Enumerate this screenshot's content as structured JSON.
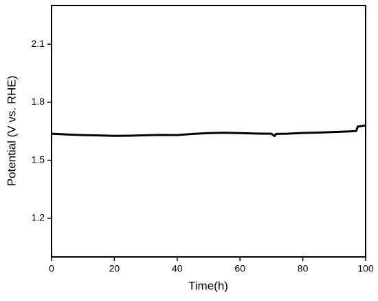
{
  "chart_data": {
    "type": "line",
    "x_label": "Time(h)",
    "y_label": "Potential (V vs. RHE)",
    "x": [
      0,
      5,
      10,
      15,
      20,
      25,
      30,
      35,
      40,
      45,
      50,
      55,
      60,
      65,
      70,
      71,
      71.5,
      75,
      80,
      85,
      90,
      95,
      97,
      97.5,
      100
    ],
    "series": [
      {
        "name": "Potential",
        "color": "#000000",
        "values": [
          1.637,
          1.633,
          1.63,
          1.628,
          1.626,
          1.627,
          1.629,
          1.631,
          1.63,
          1.636,
          1.64,
          1.642,
          1.64,
          1.638,
          1.637,
          1.625,
          1.636,
          1.637,
          1.641,
          1.643,
          1.646,
          1.649,
          1.651,
          1.674,
          1.68
        ]
      }
    ],
    "xlim": [
      0,
      100
    ],
    "xticks": [
      0,
      20,
      40,
      60,
      80,
      100
    ],
    "ylim": [
      1.0,
      2.3
    ],
    "yticks": [
      1.2,
      1.5,
      1.8,
      2.1
    ]
  }
}
